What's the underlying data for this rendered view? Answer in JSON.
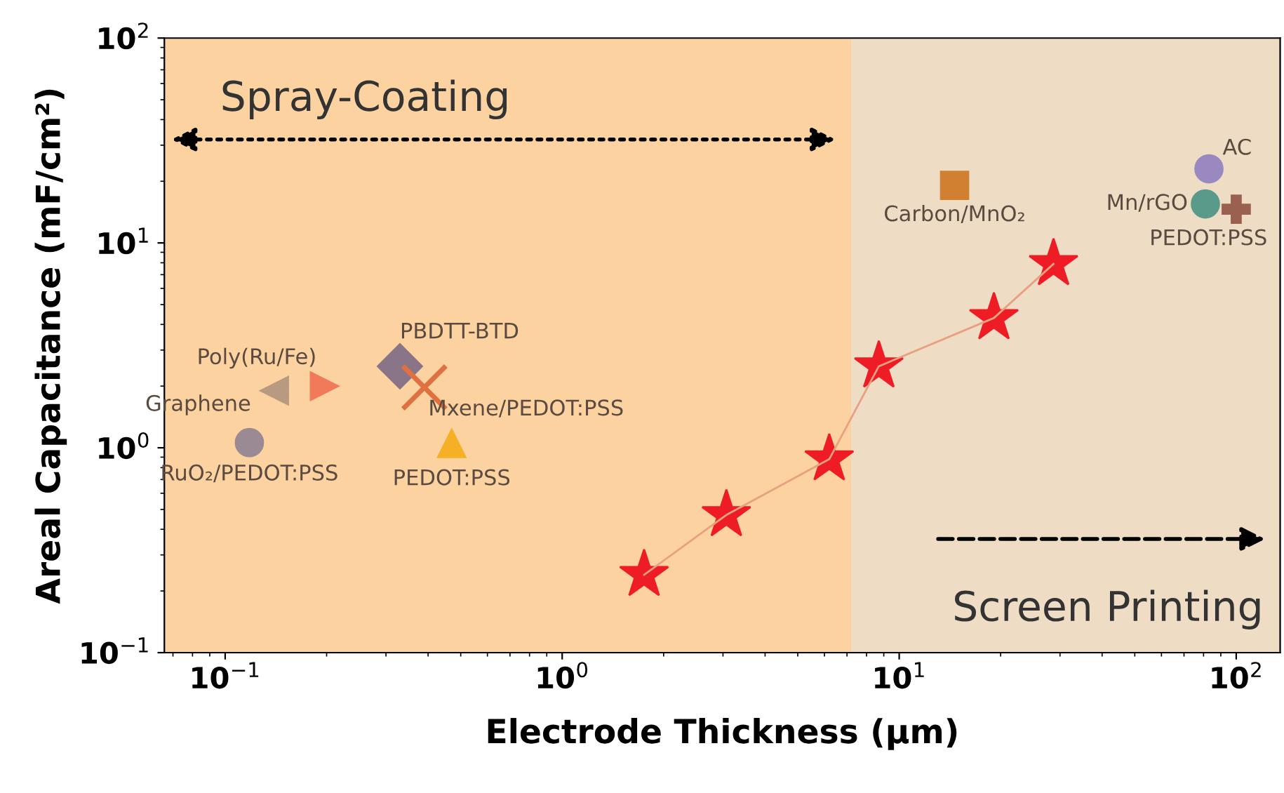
{
  "chart_data": {
    "type": "scatter",
    "xlabel": "Electrode Thickness (μm)",
    "ylabel": "Areal Capacitance (mF/cm²)",
    "log": "xy",
    "grid": false,
    "xlim": [
      0.066,
      135
    ],
    "ylim": [
      0.1,
      100
    ],
    "xticks": [
      {
        "value": 0.1,
        "label": "10$^{−1}$"
      },
      {
        "value": 1,
        "label": "10$^{0}$"
      },
      {
        "value": 10,
        "label": "10$^{1}$"
      },
      {
        "value": 100,
        "label": "10$^{2}$"
      }
    ],
    "yticks": [
      {
        "value": 0.1,
        "label": "10$^{−1}$"
      },
      {
        "value": 1,
        "label": "10$^{0}$"
      },
      {
        "value": 10,
        "label": "10$^{1}$"
      },
      {
        "value": 100,
        "label": "10$^{2}$"
      }
    ],
    "bands": [
      {
        "axis": "x",
        "from": 0.066,
        "to": 7.2,
        "label": "Spray-Coating",
        "color": "#fbd2a0"
      },
      {
        "axis": "x",
        "from": 7.2,
        "to": 135,
        "label": "Screen Printing",
        "color": "#eedcc4"
      }
    ],
    "series": [
      {
        "type": "line",
        "marker": "none",
        "color": "#e8a080",
        "x": [
          1.75,
          3.07,
          6.2,
          8.7,
          19.1,
          28.7
        ],
        "values": [
          0.24,
          0.47,
          0.88,
          2.5,
          4.3,
          7.9
        ]
      },
      {
        "marker": "star",
        "color": "#ee1c25",
        "x": [
          1.75,
          3.07,
          6.2,
          8.7,
          19.1,
          28.7
        ],
        "values": [
          0.24,
          0.47,
          0.88,
          2.5,
          4.3,
          7.9
        ]
      },
      {
        "name": "Graphene",
        "marker": "triangle_left",
        "color": "#b89a80",
        "x": [
          0.14
        ],
        "values": [
          1.9
        ]
      },
      {
        "name": "Poly(Ru/Fe)",
        "marker": "triangle_right",
        "color": "#f07a5a",
        "x": [
          0.197
        ],
        "values": [
          2.0
        ]
      },
      {
        "name": "PBDTT-BTD",
        "marker": "diamond",
        "color": "#8a7488",
        "x": [
          0.33
        ],
        "values": [
          2.5
        ]
      },
      {
        "name": "Mxene/PEDOT:PSS",
        "marker": "x",
        "color": "#e07040",
        "x": [
          0.39
        ],
        "values": [
          1.97
        ]
      },
      {
        "name": "PEDOT:PSS",
        "marker": "triangle",
        "color": "#f5b026",
        "x": [
          0.47
        ],
        "values": [
          1.05
        ]
      },
      {
        "name": "RuO₂/PEDOT:PSS",
        "color": "#9a8a94",
        "x": [
          0.118
        ],
        "values": [
          1.06
        ]
      },
      {
        "name": "Carbon/MnO₂",
        "marker": "square",
        "color": "#d08030",
        "x": [
          14.6
        ],
        "values": [
          19.1
        ]
      },
      {
        "name": "AC",
        "marker": "circle",
        "color": "#9a88c0",
        "x": [
          83
        ],
        "values": [
          23
        ]
      },
      {
        "name": "Mn/rGO",
        "color": "#5a9a8a",
        "x": [
          81
        ],
        "values": [
          15.5
        ]
      },
      {
        "name": "PEDOT:PSS",
        "marker": "cross",
        "color": "#9a6050",
        "x": [
          100
        ],
        "values": [
          14.6
        ]
      }
    ]
  }
}
